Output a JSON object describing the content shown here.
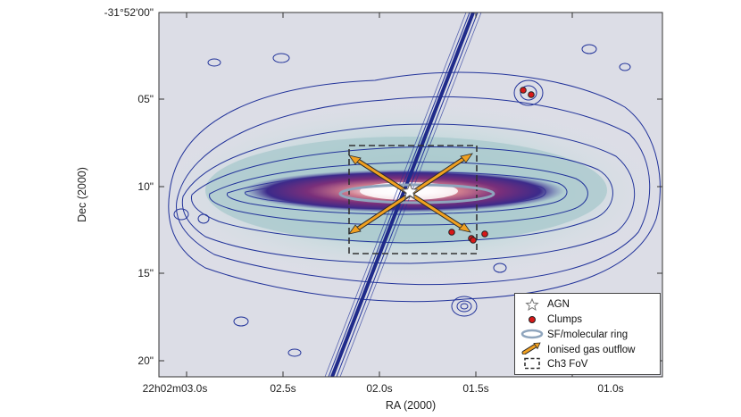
{
  "axes": {
    "xlabel": "RA (2000)",
    "ylabel": "Dec (2000)",
    "x_ticks": [
      "22h02m03.0s",
      "02.5s",
      "02.0s",
      "01.5s",
      "01.0s"
    ],
    "y_ticks": [
      "-31°52'00\"",
      "05\"",
      "10\"",
      "15\"",
      "20\""
    ]
  },
  "legend": {
    "items": [
      {
        "label": "AGN",
        "symbol": "star-icon"
      },
      {
        "label": "Clumps",
        "symbol": "red-dot-icon"
      },
      {
        "label": "SF/molecular ring",
        "symbol": "ellipse-icon"
      },
      {
        "label": "Ionised gas outflow",
        "symbol": "orange-arrow-icon"
      },
      {
        "label": "Ch3 FoV",
        "symbol": "dashed-box-icon"
      }
    ]
  },
  "colors": {
    "contour": "#22339a",
    "outflow": "#f0a020",
    "clump": "#d81818",
    "ring": "#8fa5bd",
    "fov": "#333333"
  }
}
